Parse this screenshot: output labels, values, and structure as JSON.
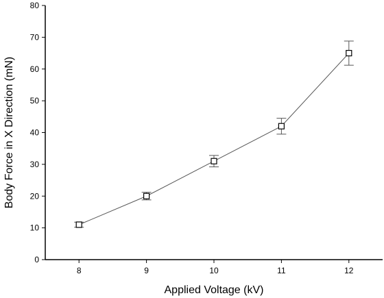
{
  "chart_data": {
    "type": "line",
    "title": "",
    "xlabel": "Applied Voltage (kV)",
    "ylabel": "Body Force in X Direction (mN)",
    "xlim": [
      7.5,
      12.5
    ],
    "ylim": [
      0,
      80
    ],
    "x_ticks": [
      8,
      9,
      10,
      11,
      12
    ],
    "y_ticks": [
      0,
      10,
      20,
      30,
      40,
      50,
      60,
      70,
      80
    ],
    "grid": false,
    "legend": "none",
    "marker": "open-square",
    "series": [
      {
        "x": [
          8,
          9,
          10,
          11,
          12
        ],
        "y": [
          11,
          20,
          31,
          42,
          65
        ],
        "error": [
          0.8,
          1.2,
          1.8,
          2.5,
          3.8
        ]
      }
    ],
    "colors": {
      "line": "#555555",
      "marker": "#000000",
      "error_bar": "#555555",
      "axis": "#000000"
    }
  }
}
